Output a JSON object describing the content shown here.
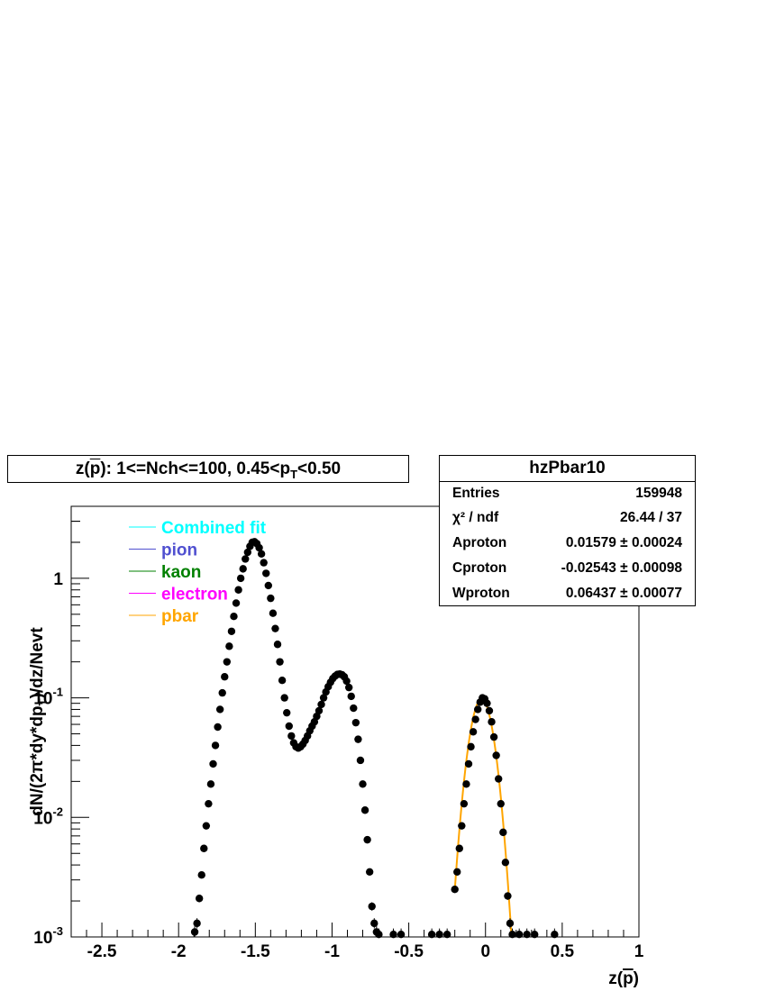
{
  "title": {
    "prefix": "z(",
    "particle": "p",
    "rest": "): 1<=Nch<=100, 0.45<p",
    "sub": "T",
    "tail": "<0.50"
  },
  "stats": {
    "name": "hzPbar10",
    "entries_label": "Entries",
    "entries_value": "159948",
    "chi2_label": "χ² / ndf",
    "chi2_value": "26.44 / 37",
    "aproton_label": "Aproton",
    "aproton_value": "0.01579 ± 0.00024",
    "cproton_label": "Cproton",
    "cproton_value": "-0.02543 ± 0.00098",
    "wproton_label": "Wproton",
    "wproton_value": "0.06437 ± 0.00077"
  },
  "chart_data": {
    "type": "scatter",
    "xlabel": "z(p̄)",
    "ylabel": "dN/(2π*dy*dpT)/dz/Nevt",
    "xlim": [
      -2.7,
      1.0
    ],
    "ylim": [
      0.001,
      4.0
    ],
    "yscale": "log",
    "x_ticks": [
      "-2.5",
      "-2",
      "-1.5",
      "-1",
      "-0.5",
      "0",
      "0.5",
      "1"
    ],
    "x_tick_values": [
      -2.5,
      -2,
      -1.5,
      -1,
      -0.5,
      0,
      0.5,
      1
    ],
    "y_ticks": [
      {
        "value": 1,
        "base": "1",
        "exp": ""
      },
      {
        "value": 0.1,
        "base": "10",
        "exp": "-1"
      },
      {
        "value": 0.01,
        "base": "10",
        "exp": "-2"
      },
      {
        "value": 0.001,
        "base": "10",
        "exp": "-3"
      }
    ],
    "legend": [
      {
        "label": "Combined fit",
        "color": "#00ffff"
      },
      {
        "label": "pion",
        "color": "#5050d0"
      },
      {
        "label": "kaon",
        "color": "#008000"
      },
      {
        "label": "electron",
        "color": "#ff00ff"
      },
      {
        "label": "pbar",
        "color": "#ffa500"
      }
    ],
    "points": [
      [
        -1.895,
        0.0011
      ],
      [
        -1.88,
        0.0013
      ],
      [
        -1.865,
        0.0021
      ],
      [
        -1.85,
        0.0033
      ],
      [
        -1.835,
        0.0055
      ],
      [
        -1.82,
        0.0085
      ],
      [
        -1.805,
        0.013
      ],
      [
        -1.79,
        0.019
      ],
      [
        -1.775,
        0.028
      ],
      [
        -1.76,
        0.04
      ],
      [
        -1.745,
        0.057
      ],
      [
        -1.73,
        0.08
      ],
      [
        -1.715,
        0.11
      ],
      [
        -1.7,
        0.15
      ],
      [
        -1.685,
        0.2
      ],
      [
        -1.67,
        0.27
      ],
      [
        -1.655,
        0.36
      ],
      [
        -1.64,
        0.48
      ],
      [
        -1.625,
        0.62
      ],
      [
        -1.61,
        0.8
      ],
      [
        -1.595,
        1.0
      ],
      [
        -1.58,
        1.2
      ],
      [
        -1.565,
        1.45
      ],
      [
        -1.55,
        1.65
      ],
      [
        -1.535,
        1.85
      ],
      [
        -1.52,
        2.0
      ],
      [
        -1.505,
        2.02
      ],
      [
        -1.49,
        1.95
      ],
      [
        -1.475,
        1.8
      ],
      [
        -1.46,
        1.6
      ],
      [
        -1.445,
        1.35
      ],
      [
        -1.43,
        1.1
      ],
      [
        -1.415,
        0.87
      ],
      [
        -1.4,
        0.68
      ],
      [
        -1.385,
        0.51
      ],
      [
        -1.37,
        0.38
      ],
      [
        -1.355,
        0.28
      ],
      [
        -1.34,
        0.2
      ],
      [
        -1.325,
        0.14
      ],
      [
        -1.31,
        0.1
      ],
      [
        -1.295,
        0.075
      ],
      [
        -1.28,
        0.058
      ],
      [
        -1.265,
        0.048
      ],
      [
        -1.25,
        0.042
      ],
      [
        -1.235,
        0.039
      ],
      [
        -1.22,
        0.038
      ],
      [
        -1.205,
        0.039
      ],
      [
        -1.19,
        0.041
      ],
      [
        -1.175,
        0.044
      ],
      [
        -1.16,
        0.048
      ],
      [
        -1.145,
        0.053
      ],
      [
        -1.13,
        0.058
      ],
      [
        -1.115,
        0.063
      ],
      [
        -1.1,
        0.07
      ],
      [
        -1.085,
        0.078
      ],
      [
        -1.07,
        0.088
      ],
      [
        -1.055,
        0.1
      ],
      [
        -1.04,
        0.112
      ],
      [
        -1.025,
        0.124
      ],
      [
        -1.01,
        0.135
      ],
      [
        -0.995,
        0.145
      ],
      [
        -0.98,
        0.152
      ],
      [
        -0.965,
        0.157
      ],
      [
        -0.95,
        0.158
      ],
      [
        -0.935,
        0.156
      ],
      [
        -0.92,
        0.15
      ],
      [
        -0.905,
        0.138
      ],
      [
        -0.89,
        0.122
      ],
      [
        -0.875,
        0.103
      ],
      [
        -0.86,
        0.082
      ],
      [
        -0.845,
        0.062
      ],
      [
        -0.83,
        0.045
      ],
      [
        -0.815,
        0.03
      ],
      [
        -0.8,
        0.019
      ],
      [
        -0.785,
        0.0115
      ],
      [
        -0.77,
        0.0065
      ],
      [
        -0.755,
        0.0035
      ],
      [
        -0.74,
        0.0018
      ],
      [
        -0.725,
        0.0013
      ],
      [
        -0.71,
        0.0011
      ],
      [
        -0.695,
        0.00105
      ],
      [
        -0.6,
        0.00105
      ],
      [
        -0.55,
        0.00105
      ],
      [
        -0.35,
        0.00105
      ],
      [
        -0.3,
        0.00105
      ],
      [
        -0.25,
        0.00105
      ],
      [
        -0.2,
        0.0025
      ],
      [
        -0.185,
        0.0035
      ],
      [
        -0.17,
        0.0055
      ],
      [
        -0.155,
        0.0085
      ],
      [
        -0.14,
        0.013
      ],
      [
        -0.125,
        0.019
      ],
      [
        -0.11,
        0.028
      ],
      [
        -0.095,
        0.039
      ],
      [
        -0.08,
        0.052
      ],
      [
        -0.065,
        0.066
      ],
      [
        -0.05,
        0.08
      ],
      [
        -0.035,
        0.092
      ],
      [
        -0.02,
        0.1
      ],
      [
        -0.005,
        0.098
      ],
      [
        0.01,
        0.09
      ],
      [
        0.025,
        0.078
      ],
      [
        0.04,
        0.063
      ],
      [
        0.055,
        0.047
      ],
      [
        0.07,
        0.033
      ],
      [
        0.085,
        0.021
      ],
      [
        0.1,
        0.013
      ],
      [
        0.115,
        0.0075
      ],
      [
        0.13,
        0.0042
      ],
      [
        0.145,
        0.0022
      ],
      [
        0.16,
        0.0013
      ],
      [
        0.175,
        0.00105
      ],
      [
        0.22,
        0.00105
      ],
      [
        0.27,
        0.00105
      ],
      [
        0.32,
        0.00105
      ],
      [
        0.45,
        0.00105
      ]
    ],
    "fit": {
      "label": "pbar",
      "function": "gaussian",
      "A": 0.01579,
      "C": -0.02543,
      "W": 0.06437,
      "x_range": [
        -0.2,
        0.17
      ]
    }
  }
}
